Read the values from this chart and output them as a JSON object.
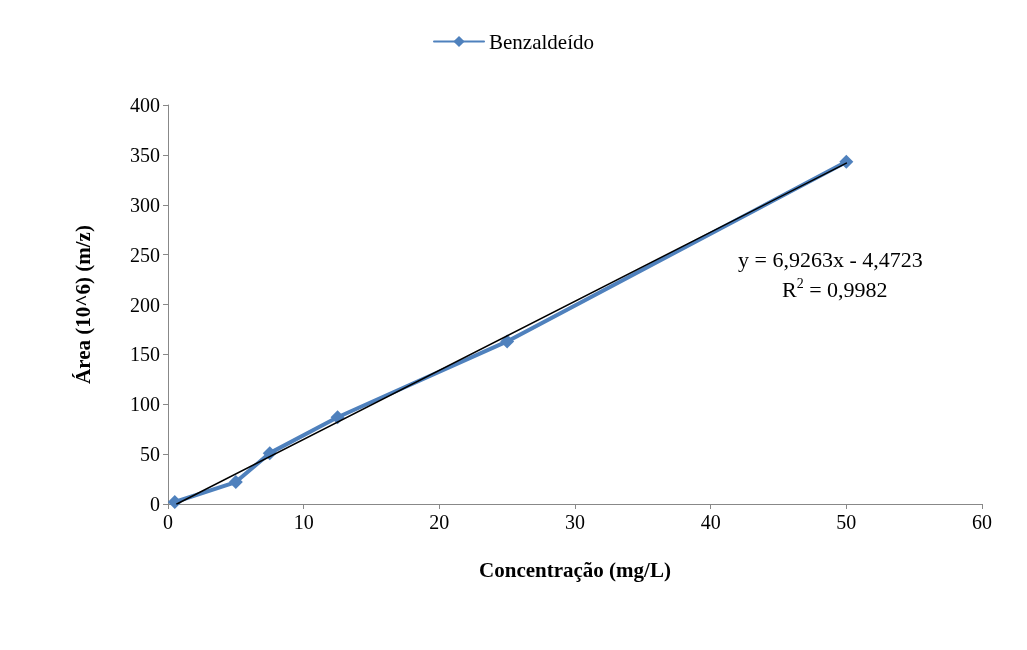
{
  "chart_data": {
    "type": "line",
    "xlabel": "Concentração (mg/L)",
    "ylabel": "Área (10^6) (m/z)",
    "x": [
      0.5,
      5,
      7.5,
      12.5,
      25,
      50
    ],
    "series": [
      {
        "name": "Benzaldeído",
        "color": "#4f81bd",
        "values": [
          2,
          22,
          51,
          87,
          163,
          343
        ],
        "marker": "diamond"
      },
      {
        "type": "line",
        "color": "#000000",
        "x": [
          0.65,
          50
        ],
        "values": [
          0,
          341.8
        ],
        "marker": "none"
      }
    ],
    "annotations": [
      "y = 6,9263x - 4,4723",
      "R$^{2}$ = 0,9982"
    ],
    "xlim": [
      0,
      60
    ],
    "xticks": [
      0,
      10,
      20,
      30,
      40,
      50,
      60
    ],
    "ylim": [
      0,
      400
    ],
    "yticks": [
      0,
      50,
      100,
      150,
      200,
      250,
      300,
      350,
      400
    ],
    "grid": false,
    "legend": "top"
  }
}
